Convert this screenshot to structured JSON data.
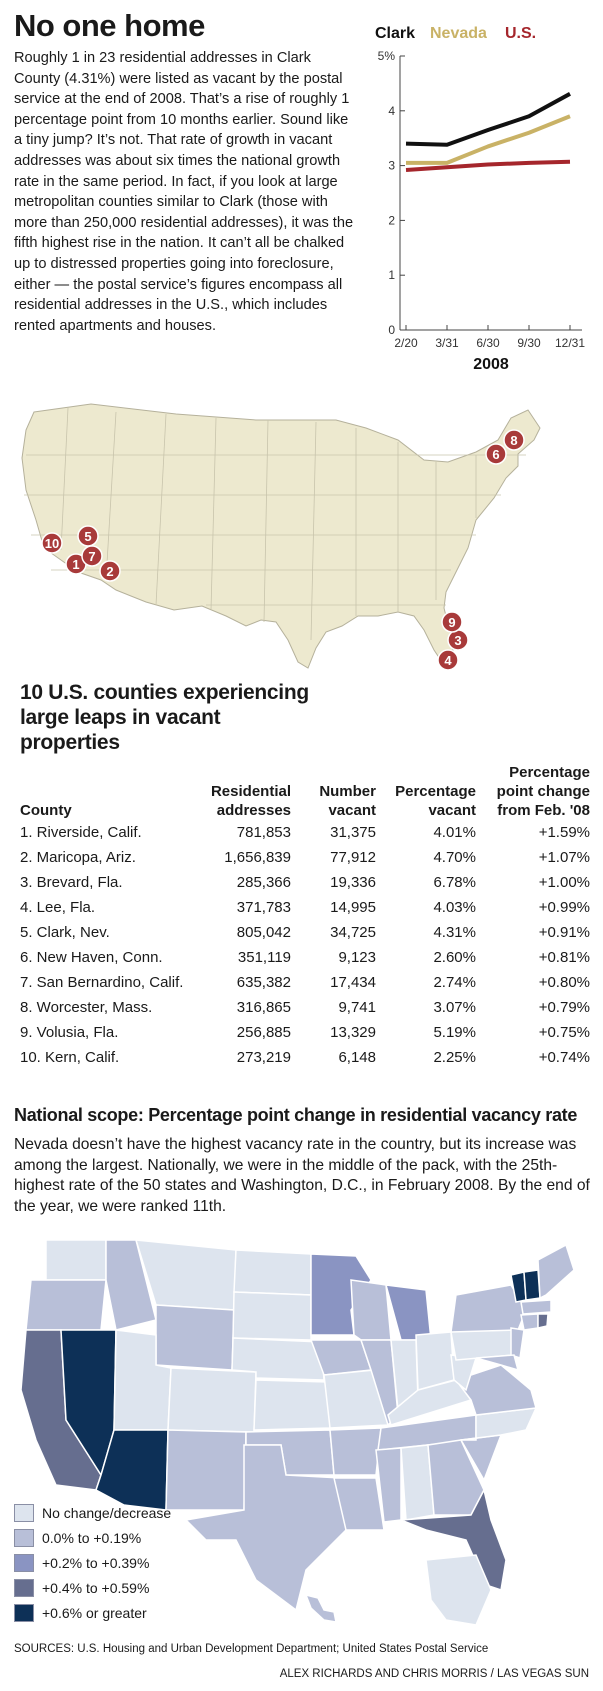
{
  "title": "No one home",
  "intro": "Roughly 1 in 23 residential addresses in Clark County (4.31%) were listed as vacant by the postal service at the end of 2008. That’s a rise of roughly 1 percentage point from 10 months earlier. Sound like a tiny jump? It’s not. That rate of growth in vacant addresses was about six times the national growth rate in the same period. In fact, if you look at large metropolitan counties similar to Clark (those with more than 250,000 residential addresses), it was the fifth highest rise in the nation. It can’t all be chalked up to distressed properties going into foreclosure, either — the postal service’s figures encompass all residential addresses in the U.S., which includes rented apartments and houses.",
  "colors": {
    "clark": "#111111",
    "nevada": "#c9b266",
    "us": "#a5262c",
    "land": "#ede9cf",
    "marker": "#a83a3a"
  },
  "chart_data": [
    {
      "type": "line",
      "title": "",
      "x": [
        "2/20",
        "3/31",
        "6/30",
        "9/30",
        "12/31"
      ],
      "xlabel": "2008",
      "ylabel": "",
      "ylim": [
        0,
        5
      ],
      "yticks": [
        "0",
        "1",
        "2",
        "3",
        "4",
        "5%"
      ],
      "grid": false,
      "legend_placement": "top",
      "series": [
        {
          "name": "Clark",
          "color": "#111111",
          "values": [
            3.4,
            3.38,
            3.65,
            3.9,
            4.31
          ]
        },
        {
          "name": "Nevada",
          "color": "#c9b266",
          "values": [
            3.05,
            3.05,
            3.35,
            3.6,
            3.9
          ]
        },
        {
          "name": "U.S.",
          "color": "#a5262c",
          "values": [
            2.92,
            2.97,
            3.02,
            3.05,
            3.07
          ]
        }
      ]
    },
    {
      "type": "table",
      "title": "10 U.S. counties experiencing large leaps in vacant properties",
      "columns": [
        "County",
        "Residential addresses",
        "Number vacant",
        "Percentage vacant",
        "Percentage point change from Feb. '08"
      ],
      "rows": [
        [
          "1. Riverside, Calif.",
          "781,853",
          "31,375",
          "4.01%",
          "+1.59%"
        ],
        [
          "2. Maricopa, Ariz.",
          "1,656,839",
          "77,912",
          "4.70%",
          "+1.07%"
        ],
        [
          "3. Brevard, Fla.",
          "285,366",
          "19,336",
          "6.78%",
          "+1.00%"
        ],
        [
          "4. Lee, Fla.",
          "371,783",
          "14,995",
          "4.03%",
          "+0.99%"
        ],
        [
          "5. Clark, Nev.",
          "805,042",
          "34,725",
          "4.31%",
          "+0.91%"
        ],
        [
          "6. New Haven, Conn.",
          "351,119",
          "9,123",
          "2.60%",
          "+0.81%"
        ],
        [
          "7. San Bernardino, Calif.",
          "635,382",
          "17,434",
          "2.74%",
          "+0.80%"
        ],
        [
          "8. Worcester, Mass.",
          "316,865",
          "9,741",
          "3.07%",
          "+0.79%"
        ],
        [
          "9. Volusia, Fla.",
          "256,885",
          "13,329",
          "5.19%",
          "+0.75%"
        ],
        [
          "10. Kern, Calif.",
          "273,219",
          "6,148",
          "2.25%",
          "+0.74%"
        ]
      ],
      "map_markers": [
        "1",
        "2",
        "3",
        "4",
        "5",
        "6",
        "7",
        "8",
        "9",
        "10"
      ]
    },
    {
      "type": "heatmap",
      "title": "National scope: Percentage point change in residential vacancy rate",
      "legend": [
        {
          "label": "No change/decrease",
          "color": "#dde4ee"
        },
        {
          "label": "0.0% to +0.19%",
          "color": "#b8bfd8"
        },
        {
          "label": "+0.2% to +0.39%",
          "color": "#8a94c2"
        },
        {
          "label": "+0.4% to +0.59%",
          "color": "#666e8f"
        },
        {
          "label": "+0.6% or greater",
          "color": "#0d3057"
        }
      ],
      "highlighted_states": {
        "+0.6% or greater": [
          "NV",
          "AZ",
          "VT",
          "NH"
        ],
        "+0.4% to +0.59%": [
          "CA",
          "FL",
          "RI"
        ],
        "+0.2% to +0.39%": [
          "MN",
          "MI"
        ]
      }
    }
  ],
  "scope_text": "Nevada doesn’t have the highest vacancy rate in the country, but its increase was among the largest. Nationally, we were in the middle of the pack, with the 25th-highest rate of the 50 states and Washington, D.C., in February 2008. By the end of the year, we were ranked 11th.",
  "sources": "SOURCES: U.S. Housing and Urban Development Department; United States Postal Service",
  "credit": "ALEX RICHARDS AND CHRIS MORRIS / LAS VEGAS SUN"
}
